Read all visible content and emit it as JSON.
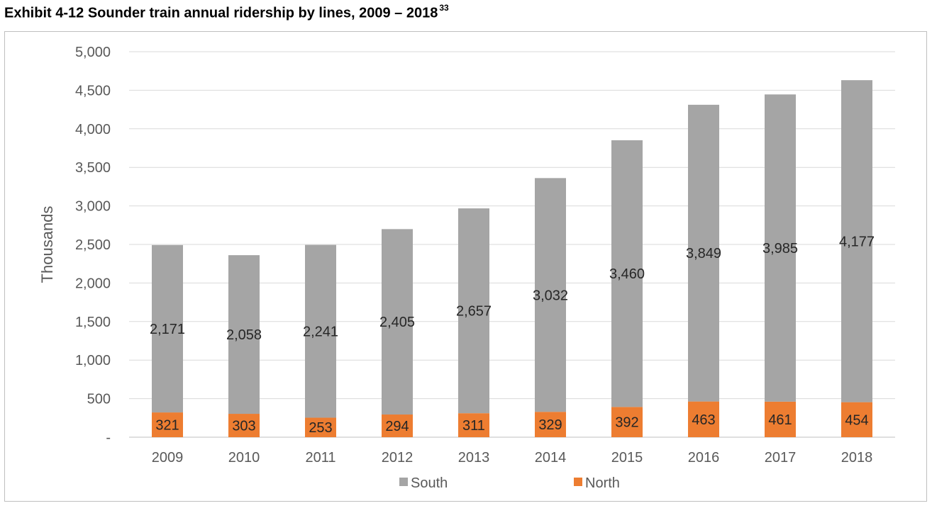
{
  "title": "Exhibit 4-12 Sounder train annual ridership by lines, 2009 – 2018",
  "title_footnote": "33",
  "chart_data": {
    "type": "bar",
    "stacked": true,
    "categories": [
      "2009",
      "2010",
      "2011",
      "2012",
      "2013",
      "2014",
      "2015",
      "2016",
      "2017",
      "2018"
    ],
    "series": [
      {
        "name": "North",
        "values": [
          321,
          303,
          253,
          294,
          311,
          329,
          392,
          463,
          461,
          454
        ],
        "color": "#ED7D31"
      },
      {
        "name": "South",
        "values": [
          2171,
          2058,
          2241,
          2405,
          2657,
          3032,
          3460,
          3849,
          3985,
          4177
        ],
        "color": "#A5A5A5"
      }
    ],
    "ylabel": "Thousands",
    "xlabel": "",
    "ylim": [
      0,
      5000
    ],
    "yticks": [
      0,
      500,
      1000,
      1500,
      2000,
      2500,
      3000,
      3500,
      4000,
      4500,
      5000
    ],
    "ytick_labels": [
      "-",
      "500",
      "1,000",
      "1,500",
      "2,000",
      "2,500",
      "3,000",
      "3,500",
      "4,000",
      "4,500",
      "5,000"
    ],
    "grid": true,
    "legend": {
      "placement": "bottom",
      "entries": [
        "South",
        "North"
      ]
    },
    "data_labels": true
  }
}
